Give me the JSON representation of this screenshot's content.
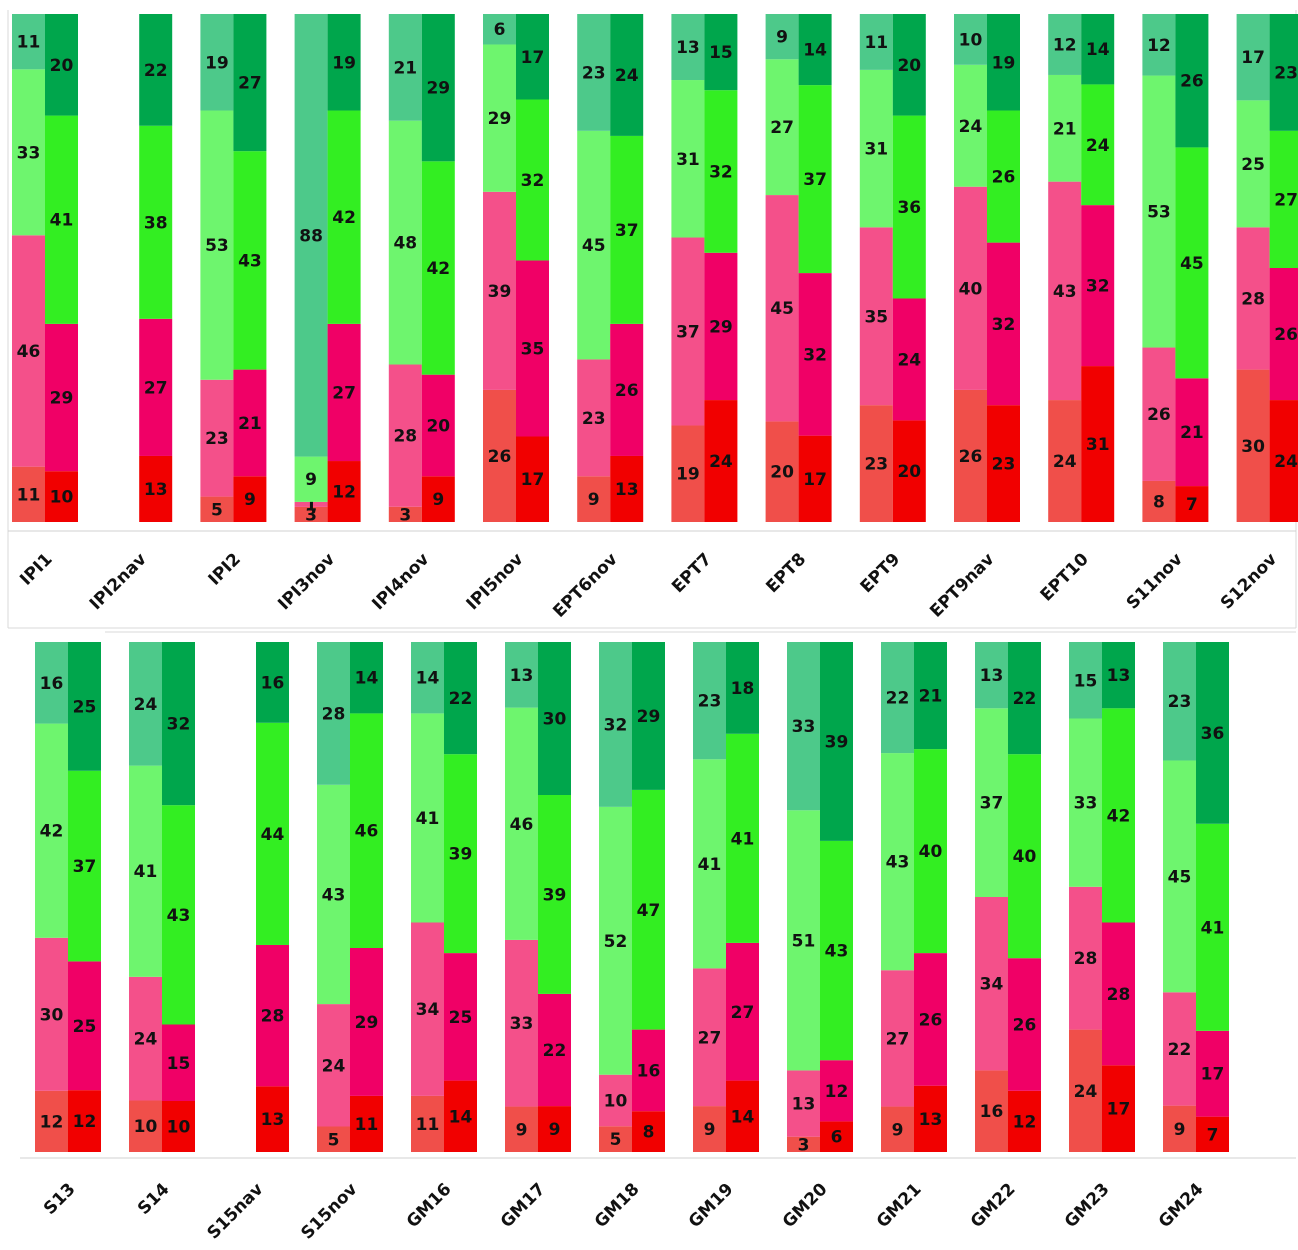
{
  "chart_data": {
    "type": "bar",
    "stacked": true,
    "paired_columns": true,
    "segment_order_bottom_to_top": [
      "red",
      "pink",
      "light-green",
      "green"
    ],
    "colors": {
      "light": [
        "#f04f4a",
        "#f4508a",
        "#6ef56e",
        "#4dc98a"
      ],
      "dark": [
        "#f10000",
        "#f00066",
        "#33ee22",
        "#00a64c"
      ]
    },
    "panels": [
      {
        "groups": [
          {
            "label": "IPI1",
            "light": [
              11,
              46,
              33,
              11
            ],
            "dark": [
              10,
              29,
              41,
              20
            ]
          },
          {
            "label": "IPI2nav",
            "light": null,
            "dark": [
              13,
              27,
              38,
              22
            ]
          },
          {
            "label": "IPI2",
            "light": [
              5,
              23,
              53,
              19
            ],
            "dark": [
              9,
              21,
              43,
              27
            ]
          },
          {
            "label": "IPI3nov",
            "light": [
              3,
              1,
              9,
              88
            ],
            "dark": [
              12,
              27,
              42,
              19
            ]
          },
          {
            "label": "IPI4nov",
            "light": [
              3,
              28,
              48,
              21
            ],
            "dark": [
              9,
              20,
              42,
              29
            ]
          },
          {
            "label": "IPI5nov",
            "light": [
              26,
              39,
              29,
              6
            ],
            "dark": [
              17,
              35,
              32,
              17
            ]
          },
          {
            "label": "EPT6nov",
            "light": [
              9,
              23,
              45,
              23
            ],
            "dark": [
              13,
              26,
              37,
              24
            ]
          },
          {
            "label": "EPT7",
            "light": [
              19,
              37,
              31,
              13
            ],
            "dark": [
              24,
              29,
              32,
              15
            ]
          },
          {
            "label": "EPT8",
            "light": [
              20,
              45,
              27,
              9
            ],
            "dark": [
              17,
              32,
              37,
              14
            ]
          },
          {
            "label": "EPT9",
            "light": [
              23,
              35,
              31,
              11
            ],
            "dark": [
              20,
              24,
              36,
              20
            ]
          },
          {
            "label": "EPT9nav",
            "light": [
              26,
              40,
              24,
              10
            ],
            "dark": [
              23,
              32,
              26,
              19
            ]
          },
          {
            "label": "EPT10",
            "light": [
              24,
              43,
              21,
              12
            ],
            "dark": [
              31,
              32,
              24,
              14
            ]
          },
          {
            "label": "S11nov",
            "light": [
              8,
              26,
              53,
              12
            ],
            "dark": [
              7,
              21,
              45,
              26
            ]
          },
          {
            "label": "S12nov",
            "light": [
              30,
              28,
              25,
              17
            ],
            "dark": [
              24,
              26,
              27,
              23
            ]
          }
        ]
      },
      {
        "groups": [
          {
            "label": "S13",
            "light": [
              12,
              30,
              42,
              16
            ],
            "dark": [
              12,
              25,
              37,
              25
            ]
          },
          {
            "label": "S14",
            "light": [
              10,
              24,
              41,
              24
            ],
            "dark": [
              10,
              15,
              43,
              32
            ]
          },
          {
            "label": "S15nav",
            "light": null,
            "dark": [
              13,
              28,
              44,
              16
            ]
          },
          {
            "label": "S15nov",
            "light": [
              5,
              24,
              43,
              28
            ],
            "dark": [
              11,
              29,
              46,
              14
            ]
          },
          {
            "label": "GM16",
            "light": [
              11,
              34,
              41,
              14
            ],
            "dark": [
              14,
              25,
              39,
              22
            ]
          },
          {
            "label": "GM17",
            "light": [
              9,
              33,
              46,
              13
            ],
            "dark": [
              9,
              22,
              39,
              30
            ]
          },
          {
            "label": "GM18",
            "light": [
              5,
              10,
              52,
              32
            ],
            "dark": [
              8,
              16,
              47,
              29
            ]
          },
          {
            "label": "GM19",
            "light": [
              9,
              27,
              41,
              23
            ],
            "dark": [
              14,
              27,
              41,
              18
            ]
          },
          {
            "label": "GM20",
            "light": [
              3,
              13,
              51,
              33
            ],
            "dark": [
              6,
              12,
              43,
              39
            ]
          },
          {
            "label": "GM21",
            "light": [
              9,
              27,
              43,
              22
            ],
            "dark": [
              13,
              26,
              40,
              21
            ]
          },
          {
            "label": "GM22",
            "light": [
              16,
              34,
              37,
              13
            ],
            "dark": [
              12,
              26,
              40,
              22
            ]
          },
          {
            "label": "GM23",
            "light": [
              24,
              28,
              33,
              15
            ],
            "dark": [
              17,
              28,
              42,
              13
            ]
          },
          {
            "label": "GM24",
            "light": [
              9,
              22,
              45,
              23
            ],
            "dark": [
              7,
              17,
              41,
              36
            ]
          }
        ]
      }
    ]
  }
}
